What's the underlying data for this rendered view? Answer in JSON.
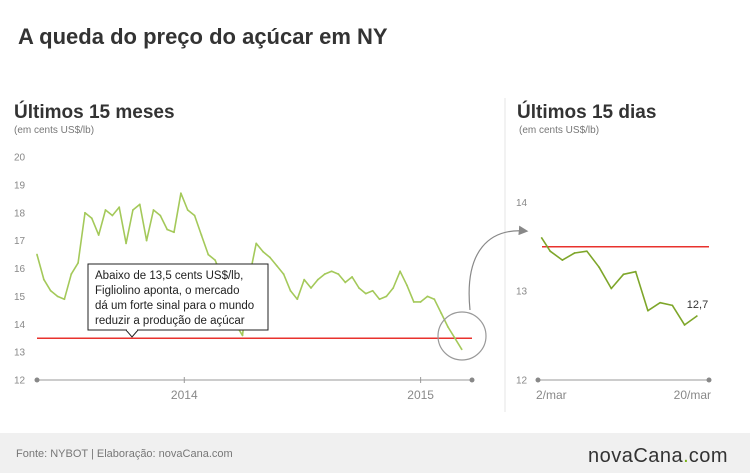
{
  "title": "A queda do preço do açúcar em NY",
  "footer": {
    "source": "Fonte: NYBOT | Elaboração: novaCana.com",
    "logo_main": "novaCana",
    "logo_dot": ".",
    "logo_suffix": "com"
  },
  "colors": {
    "series": "#a4c95a",
    "series_dark": "#7ea62a",
    "threshold": "#e8322d",
    "axis": "#999999",
    "footer_bg": "#f0f0f0",
    "logo_accent": "#7ab317"
  },
  "chart_data": [
    {
      "type": "line",
      "title": "Últimos 15 meses",
      "ylabel": "(em cents US$/lb)",
      "ylim": [
        12,
        20
      ],
      "yticks": [
        "20",
        "19",
        "18",
        "17",
        "16",
        "15",
        "14",
        "13",
        "12"
      ],
      "xlim": [
        2013.95,
        2015.22
      ],
      "x_ticks": [
        {
          "value": 2014.38,
          "label": "2014"
        },
        {
          "value": 2015.07,
          "label": "2015"
        }
      ],
      "threshold": {
        "value": 13.5
      },
      "annotation": {
        "lines": [
          "Abaixo de 13,5 cents US$/lb,",
          "Figliolino aponta, o mercado",
          "dá um forte sinal para o mundo",
          "reduzir a produção de açúcar"
        ]
      },
      "series": [
        {
          "x": [
            2013.95,
            2013.97,
            2013.99,
            2014.01,
            2014.03,
            2014.05,
            2014.07,
            2014.09,
            2014.11,
            2014.13,
            2014.15,
            2014.17,
            2014.19,
            2014.21,
            2014.23,
            2014.25,
            2014.27,
            2014.29,
            2014.31,
            2014.33,
            2014.35,
            2014.37,
            2014.39,
            2014.41,
            2014.43,
            2014.45,
            2014.47,
            2014.49,
            2014.51,
            2014.53,
            2014.55,
            2014.57,
            2014.59,
            2014.61,
            2014.63,
            2014.65,
            2014.67,
            2014.69,
            2014.71,
            2014.73,
            2014.75,
            2014.77,
            2014.79,
            2014.81,
            2014.83,
            2014.85,
            2014.87,
            2014.89,
            2014.91,
            2014.93,
            2014.95,
            2014.97,
            2014.99,
            2015.01,
            2015.03,
            2015.05,
            2015.07,
            2015.09,
            2015.11,
            2015.13,
            2015.15,
            2015.17,
            2015.19
          ],
          "y": [
            16.5,
            15.6,
            15.2,
            15.0,
            14.9,
            15.8,
            16.2,
            18.0,
            17.8,
            17.2,
            18.1,
            17.9,
            18.2,
            16.9,
            18.1,
            18.3,
            17.0,
            18.1,
            17.9,
            17.4,
            17.3,
            18.7,
            18.1,
            17.9,
            17.2,
            16.5,
            16.3,
            15.7,
            14.8,
            14.0,
            13.6,
            15.7,
            16.9,
            16.6,
            16.4,
            16.1,
            15.8,
            15.2,
            14.9,
            15.6,
            15.3,
            15.6,
            15.8,
            15.9,
            15.8,
            15.5,
            15.7,
            15.3,
            15.1,
            15.2,
            14.9,
            15.0,
            15.3,
            15.9,
            15.4,
            14.8,
            14.8,
            15.0,
            14.9,
            14.4,
            13.9,
            13.5,
            13.1
          ]
        }
      ]
    },
    {
      "type": "line",
      "title": "Últimos 15 dias",
      "ylabel": "(em cents US$/lb)",
      "ylim": [
        12,
        14.5
      ],
      "yticks": [
        "14",
        "13",
        "12"
      ],
      "xlim": [
        0,
        14
      ],
      "x_ticks": [
        {
          "value": 0,
          "label": "2/mar"
        },
        {
          "value": 14,
          "label": "20/mar"
        }
      ],
      "threshold": {
        "value": 13.5
      },
      "last_label": "12,7",
      "series": [
        {
          "x": [
            0.3,
            1.0,
            2.0,
            3.0,
            4.0,
            5.0,
            6.0,
            7.0,
            8.0,
            9.0,
            10.0,
            11.0,
            12.0,
            13.0
          ],
          "y": [
            13.6,
            13.45,
            13.35,
            13.43,
            13.45,
            13.27,
            13.03,
            13.19,
            13.22,
            12.78,
            12.87,
            12.84,
            12.62,
            12.72
          ]
        }
      ]
    }
  ]
}
